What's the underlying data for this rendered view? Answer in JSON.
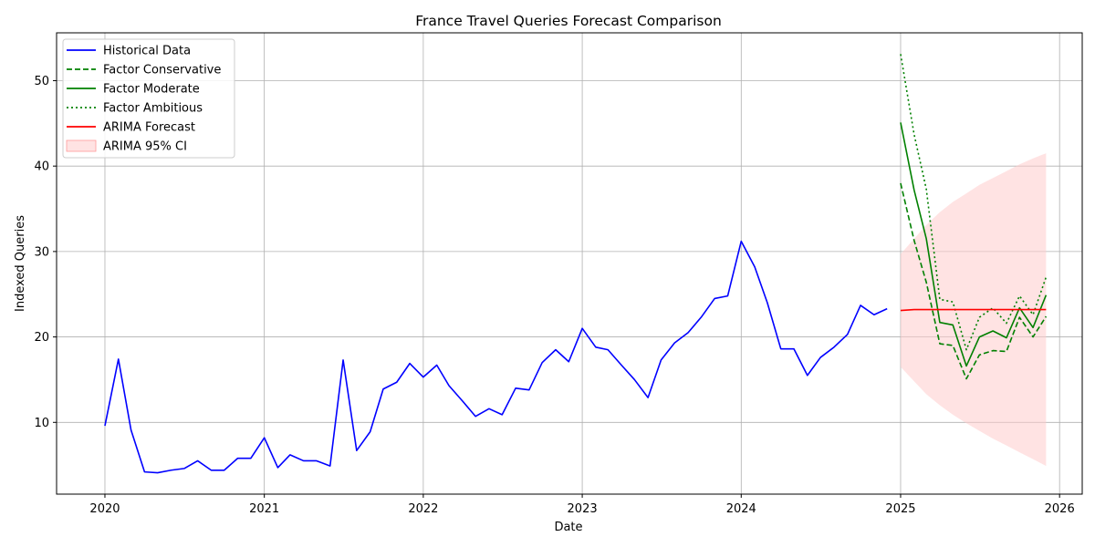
{
  "chart_data": {
    "type": "line",
    "title": "France Travel Queries Forecast Comparison",
    "xlabel": "Date",
    "ylabel": "Indexed Queries",
    "xlim": [
      "2019-09-12",
      "2026-02-22"
    ],
    "ylim": [
      1.6,
      55.6
    ],
    "grid": true,
    "legend_position": "top-left",
    "x_ticks": [
      "2020",
      "2021",
      "2022",
      "2023",
      "2024",
      "2025",
      "2026"
    ],
    "y_ticks": [
      10,
      20,
      30,
      40,
      50
    ],
    "historical": {
      "name": "Historical Data",
      "color": "#0000ff",
      "start": "2020-01",
      "values": [
        9.6,
        17.4,
        9.1,
        4.2,
        4.1,
        4.4,
        4.6,
        5.5,
        4.4,
        4.4,
        5.8,
        5.8,
        8.2,
        4.7,
        6.2,
        5.5,
        5.5,
        4.9,
        17.3,
        6.7,
        8.9,
        13.9,
        14.7,
        16.9,
        15.3,
        16.7,
        14.3,
        12.5,
        10.7,
        11.6,
        10.9,
        14.0,
        13.8,
        17.0,
        18.5,
        17.1,
        21.0,
        18.8,
        18.5,
        16.7,
        15.0,
        12.9,
        17.3,
        19.3,
        20.5,
        22.3,
        24.5,
        24.8,
        31.2,
        28.2,
        24.0,
        18.6,
        18.6,
        15.5,
        17.6,
        18.8,
        20.3,
        23.7,
        22.6,
        23.3
      ]
    },
    "forecast_start": "2025-01",
    "forecast_series": [
      {
        "name": "Factor Conservative",
        "color": "#008000",
        "dash": "dashed",
        "values": [
          38.0,
          31.3,
          26.4,
          19.2,
          19.0,
          15.1,
          17.9,
          18.4,
          18.3,
          22.3,
          20.0,
          22.4
        ]
      },
      {
        "name": "Factor Moderate",
        "color": "#008000",
        "dash": "solid",
        "values": [
          45.1,
          37.2,
          31.5,
          21.7,
          21.4,
          16.6,
          20.0,
          20.7,
          19.9,
          23.4,
          21.1,
          24.9
        ]
      },
      {
        "name": "Factor Ambitious",
        "color": "#008000",
        "dash": "dotted",
        "values": [
          53.1,
          43.7,
          37.3,
          24.4,
          24.1,
          18.5,
          22.3,
          23.4,
          21.6,
          24.8,
          22.6,
          27.0
        ]
      },
      {
        "name": "ARIMA Forecast",
        "color": "#ff0000",
        "dash": "solid",
        "values": [
          23.1,
          23.2,
          23.2,
          23.2,
          23.2,
          23.2,
          23.2,
          23.2,
          23.2,
          23.2,
          23.2,
          23.2
        ]
      }
    ],
    "ci": {
      "name": "ARIMA 95% CI",
      "color": "#ffcccc",
      "upper": [
        29.7,
        31.5,
        33.1,
        34.6,
        35.8,
        36.8,
        37.8,
        38.6,
        39.4,
        40.2,
        40.9,
        41.5
      ],
      "lower": [
        16.5,
        14.8,
        13.3,
        12.0,
        10.9,
        9.9,
        9.0,
        8.1,
        7.3,
        6.5,
        5.7,
        4.9
      ]
    },
    "legend": [
      "Historical Data",
      "Factor Conservative",
      "Factor Moderate",
      "Factor Ambitious",
      "ARIMA Forecast",
      "ARIMA 95% CI"
    ]
  }
}
